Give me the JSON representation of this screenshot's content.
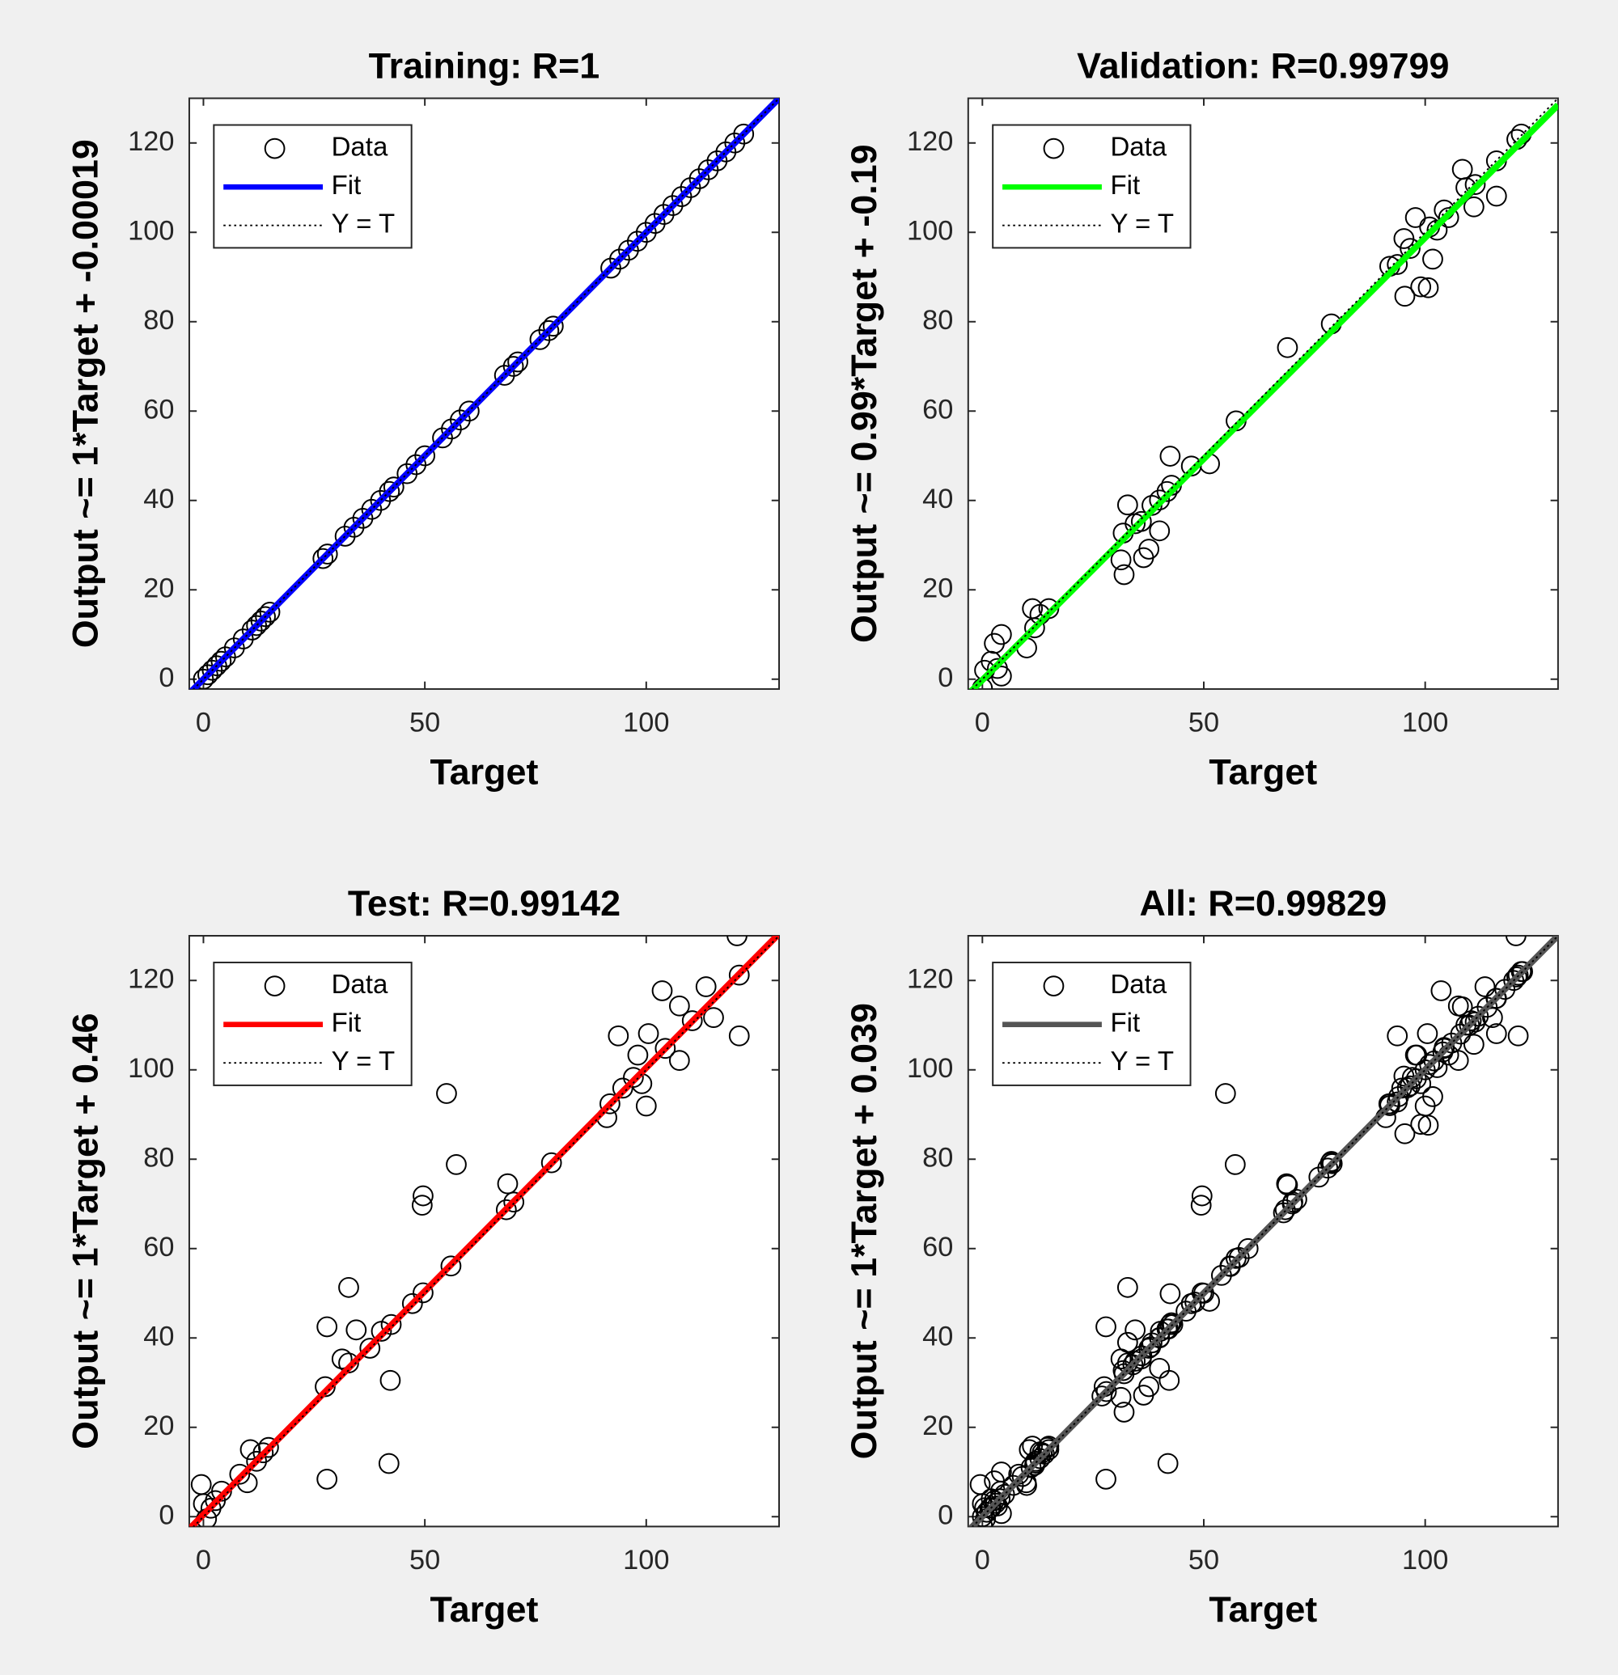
{
  "chart_data": [
    {
      "type": "scatter",
      "title": "Training: R=1",
      "xlabel": "Target",
      "ylabel": "Output ~= 1*Target + -0.00019",
      "xlim": [
        -3.2,
        130
      ],
      "ylim": [
        -2.2,
        130
      ],
      "xticks": [
        0,
        50,
        100
      ],
      "yticks": [
        0,
        20,
        40,
        60,
        80,
        100,
        120
      ],
      "legend": "upper left",
      "series": [
        {
          "name": "Data",
          "color": "#000000",
          "style": "marker",
          "x": [
            0,
            1,
            2,
            3,
            4,
            5,
            7,
            9,
            11,
            12,
            13,
            14,
            15,
            27,
            28,
            32,
            34,
            36,
            38,
            40,
            42,
            43,
            46,
            48,
            50,
            54,
            56,
            58,
            60,
            68,
            70,
            71,
            76,
            78,
            79,
            92,
            94,
            96,
            98,
            100,
            102,
            104,
            106,
            108,
            110,
            112,
            114,
            116,
            118,
            120,
            122
          ],
          "values": [
            0,
            1,
            2,
            3,
            4,
            5,
            7,
            9,
            11,
            12,
            13,
            14,
            15,
            27,
            28,
            32,
            34,
            36,
            38,
            40,
            42,
            43,
            46,
            48,
            50,
            54,
            56,
            58,
            60,
            68,
            70,
            71,
            76,
            78,
            79,
            92,
            94,
            96,
            98,
            100,
            102,
            104,
            106,
            108,
            110,
            112,
            114,
            116,
            118,
            120,
            122
          ]
        },
        {
          "name": "Fit",
          "color": "#0000ff",
          "style": "line",
          "x": [
            -3.2,
            130
          ],
          "values": [
            -3.2002,
            129.9998
          ]
        },
        {
          "name": "Y = T",
          "color": "#000000",
          "style": "dotted",
          "x": [
            -3.2,
            130
          ],
          "values": [
            -3.2,
            130
          ]
        }
      ]
    },
    {
      "type": "scatter",
      "title": "Validation: R=0.99799",
      "xlabel": "Target",
      "ylabel": "Output ~= 0.99*Target + -0.19",
      "xlim": [
        -3.2,
        130
      ],
      "ylim": [
        -2.2,
        130
      ],
      "xticks": [
        0,
        50,
        100
      ],
      "yticks": [
        0,
        20,
        40,
        60,
        80,
        100,
        120
      ],
      "legend": "upper left",
      "series": [
        {
          "name": "Data",
          "color": "#000000",
          "style": "marker",
          "x": [
            0,
            0.5,
            2,
            2.7,
            4.3,
            4.3,
            3.4,
            10,
            11.3,
            11.8,
            13,
            15,
            31.3,
            32,
            32.8,
            31.8,
            34.5,
            35.9,
            36.4,
            37.6,
            38.3,
            40,
            40,
            41.7,
            42.7,
            42.4,
            47.2,
            51.3,
            57.3,
            68.9,
            78.8,
            92,
            93.7,
            95.2,
            95.4,
            96.6,
            97.8,
            99,
            100.7,
            101,
            101.7,
            102.7,
            104.3,
            105.3,
            108.4,
            109.2,
            111,
            111.3,
            116.1,
            116.1,
            120.7,
            121.7
          ],
          "values": [
            -2,
            2,
            4,
            8,
            10,
            0.7,
            2.4,
            7,
            15.8,
            11.5,
            14.5,
            15.8,
            26.7,
            23.4,
            39,
            32.7,
            34.8,
            35.3,
            27.2,
            29.1,
            38.9,
            33.2,
            40.1,
            42,
            43.4,
            49.9,
            47.7,
            48.2,
            57.8,
            74.2,
            79.5,
            92.4,
            92.8,
            98.6,
            85.7,
            96.4,
            103.3,
            87.8,
            87.6,
            101.2,
            94,
            100.5,
            105,
            103.3,
            114.1,
            110,
            105.7,
            110.7,
            108.1,
            116,
            120.8,
            122
          ]
        },
        {
          "name": "Fit",
          "color": "#00ff00",
          "style": "line",
          "x": [
            -3.2,
            130
          ],
          "values": [
            -3.358,
            128.51
          ]
        },
        {
          "name": "Y = T",
          "color": "#000000",
          "style": "dotted",
          "x": [
            -3.2,
            130
          ],
          "values": [
            -3.2,
            130
          ]
        }
      ]
    },
    {
      "type": "scatter",
      "title": "Test: R=0.99142",
      "xlabel": "Target",
      "ylabel": "Output ~= 1*Target + 0.46",
      "xlim": [
        -3.2,
        130
      ],
      "ylim": [
        -2.2,
        130
      ],
      "xticks": [
        0,
        50,
        100
      ],
      "yticks": [
        0,
        20,
        40,
        60,
        80,
        100,
        120
      ],
      "legend": "upper left",
      "series": [
        {
          "name": "Data",
          "color": "#000000",
          "style": "marker",
          "x": [
            -0.5,
            0,
            0.7,
            1.7,
            2.7,
            4.1,
            8.2,
            9.9,
            10.6,
            12,
            13.5,
            14.7,
            27.5,
            27.9,
            27.9,
            31.3,
            32.8,
            32.8,
            34.5,
            37.6,
            40.2,
            41.9,
            42.2,
            42.4,
            47.2,
            49.6,
            49.4,
            49.6,
            54.9,
            55.9,
            57.1,
            68.4,
            68.7,
            70.1,
            78.6,
            91.1,
            91.8,
            93.7,
            94.7,
            97.1,
            98.1,
            99,
            100,
            100.5,
            103.6,
            104.3,
            107.5,
            107.5,
            110.4,
            113.5,
            115.2,
            120.5,
            121,
            121
          ],
          "values": [
            7.2,
            2.9,
            -0.5,
            1.9,
            3.6,
            5.7,
            9.5,
            7.6,
            15,
            12.4,
            14.3,
            15.5,
            29.1,
            8.4,
            42.5,
            35.3,
            51.3,
            34.4,
            41.8,
            37.7,
            41.5,
            11.9,
            30.5,
            43,
            47.7,
            50.1,
            69.7,
            71.8,
            94.7,
            56.1,
            78.8,
            68.7,
            74.5,
            70.4,
            79.2,
            89.3,
            92.4,
            107.6,
            95.9,
            98.3,
            103.3,
            96.9,
            91.9,
            108.1,
            117.7,
            104.8,
            114.3,
            102.1,
            111,
            118.6,
            111.7,
            130,
            107.6,
            121.2
          ]
        },
        {
          "name": "Fit",
          "color": "#ff0000",
          "style": "line",
          "x": [
            -3.2,
            130
          ],
          "values": [
            -2.74,
            130.46
          ]
        },
        {
          "name": "Y = T",
          "color": "#000000",
          "style": "dotted",
          "x": [
            -3.2,
            130
          ],
          "values": [
            -3.2,
            130
          ]
        }
      ]
    },
    {
      "type": "scatter",
      "title": "All: R=0.99829",
      "xlabel": "Target",
      "ylabel": "Output ~= 1*Target + 0.039",
      "xlim": [
        -3.2,
        130
      ],
      "ylim": [
        -2.2,
        130
      ],
      "xticks": [
        0,
        50,
        100
      ],
      "yticks": [
        0,
        20,
        40,
        60,
        80,
        100,
        120
      ],
      "legend": "upper left",
      "series": [
        {
          "name": "Data",
          "color": "#000000",
          "style": "marker",
          "x": [
            0,
            1,
            2,
            3,
            4,
            5,
            7,
            9,
            11,
            12,
            13,
            14,
            15,
            27,
            28,
            32,
            34,
            36,
            38,
            40,
            42,
            43,
            46,
            48,
            50,
            54,
            56,
            58,
            60,
            68,
            70,
            71,
            76,
            78,
            79,
            92,
            94,
            96,
            98,
            100,
            102,
            104,
            106,
            108,
            110,
            112,
            114,
            116,
            118,
            120,
            122,
            0,
            0.5,
            2,
            2.7,
            4.3,
            4.3,
            3.4,
            10,
            11.3,
            11.8,
            13,
            15,
            31.3,
            32,
            32.8,
            31.8,
            34.5,
            35.9,
            36.4,
            37.6,
            38.3,
            40,
            40,
            41.7,
            42.7,
            42.4,
            47.2,
            51.3,
            57.3,
            68.9,
            78.8,
            92,
            93.7,
            95.2,
            95.4,
            96.6,
            97.8,
            99,
            100.7,
            101,
            101.7,
            102.7,
            104.3,
            105.3,
            108.4,
            109.2,
            111,
            111.3,
            116.1,
            116.1,
            120.7,
            121.7,
            -0.5,
            0,
            0.7,
            1.7,
            2.7,
            4.1,
            8.2,
            9.9,
            10.6,
            12,
            13.5,
            14.7,
            27.5,
            27.9,
            27.9,
            31.3,
            32.8,
            32.8,
            34.5,
            37.6,
            40.2,
            41.9,
            42.2,
            42.4,
            47.2,
            49.6,
            49.4,
            49.6,
            54.9,
            55.9,
            57.1,
            68.4,
            68.7,
            70.1,
            78.6,
            91.1,
            91.8,
            93.7,
            94.7,
            97.1,
            98.1,
            99,
            100,
            100.5,
            103.6,
            104.3,
            107.5,
            107.5,
            110.4,
            113.5,
            115.2,
            120.5,
            121,
            121
          ],
          "values": [
            0,
            1,
            2,
            3,
            4,
            5,
            7,
            9,
            11,
            12,
            13,
            14,
            15,
            27,
            28,
            32,
            34,
            36,
            38,
            40,
            42,
            43,
            46,
            48,
            50,
            54,
            56,
            58,
            60,
            68,
            70,
            71,
            76,
            78,
            79,
            92,
            94,
            96,
            98,
            100,
            102,
            104,
            106,
            108,
            110,
            112,
            114,
            116,
            118,
            120,
            122,
            -2,
            2,
            4,
            8,
            10,
            0.7,
            2.4,
            7,
            15.8,
            11.5,
            14.5,
            15.8,
            26.7,
            23.4,
            39,
            32.7,
            34.8,
            35.3,
            27.2,
            29.1,
            38.9,
            33.2,
            40.1,
            42,
            43.4,
            49.9,
            47.7,
            48.2,
            57.8,
            74.2,
            79.5,
            92.4,
            92.8,
            98.6,
            85.7,
            96.4,
            103.3,
            87.8,
            87.6,
            101.2,
            94,
            100.5,
            105,
            103.3,
            114.1,
            110,
            105.7,
            110.7,
            108.1,
            116,
            120.8,
            122,
            7.2,
            2.9,
            -0.5,
            1.9,
            3.6,
            5.7,
            9.5,
            7.6,
            15,
            12.4,
            14.3,
            15.5,
            29.1,
            8.4,
            42.5,
            35.3,
            51.3,
            34.4,
            41.8,
            37.7,
            41.5,
            11.9,
            30.5,
            43,
            47.7,
            50.1,
            69.7,
            71.8,
            94.7,
            56.1,
            78.8,
            68.7,
            74.5,
            70.4,
            79.2,
            89.3,
            92.4,
            107.6,
            95.9,
            98.3,
            103.3,
            96.9,
            91.9,
            108.1,
            117.7,
            104.8,
            114.3,
            102.1,
            111,
            118.6,
            111.7,
            130,
            107.6,
            121.2
          ]
        },
        {
          "name": "Fit",
          "color": "#555555",
          "style": "line",
          "x": [
            -3.2,
            130
          ],
          "values": [
            -3.161,
            130.039
          ]
        },
        {
          "name": "Y = T",
          "color": "#000000",
          "style": "dotted",
          "x": [
            -3.2,
            130
          ],
          "values": [
            -3.2,
            130
          ]
        }
      ]
    }
  ]
}
